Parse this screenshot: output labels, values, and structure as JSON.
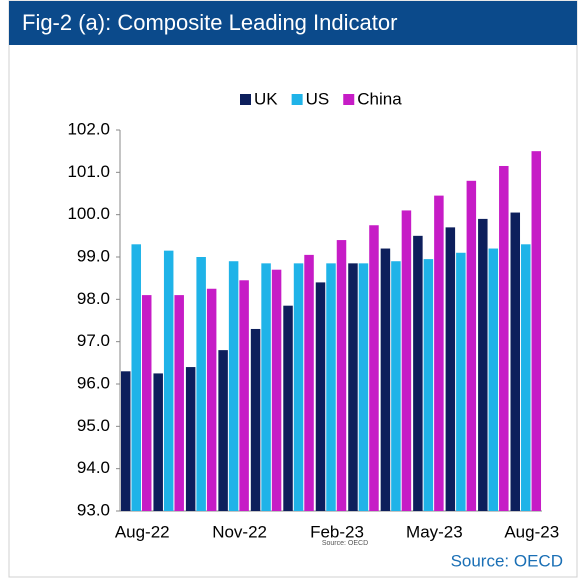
{
  "chart_data": {
    "type": "bar",
    "title": "Fig-2 (a): Composite Leading Indicator",
    "categories": [
      "Aug-22",
      null,
      null,
      "Nov-22",
      null,
      null,
      "Feb-23",
      null,
      null,
      "May-23",
      null,
      null,
      "Aug-23"
    ],
    "series": [
      {
        "name": "UK",
        "color": "#0d1f5c",
        "values": [
          96.3,
          96.25,
          96.4,
          96.8,
          97.3,
          97.85,
          98.4,
          98.85,
          99.2,
          99.5,
          99.7,
          99.9,
          100.05
        ]
      },
      {
        "name": "US",
        "color": "#1fb3e8",
        "values": [
          99.3,
          99.15,
          99.0,
          98.9,
          98.85,
          98.85,
          98.85,
          98.85,
          98.9,
          98.95,
          99.1,
          99.2,
          99.3
        ]
      },
      {
        "name": "China",
        "color": "#c61cc6",
        "values": [
          98.1,
          98.1,
          98.25,
          98.45,
          98.7,
          99.05,
          99.4,
          99.75,
          100.1,
          100.45,
          100.8,
          101.15,
          101.5
        ]
      }
    ],
    "ylim": [
      93,
      102
    ],
    "yticks": [
      {
        "value": 93,
        "label": "93.0"
      },
      {
        "value": 94,
        "label": "94.0"
      },
      {
        "value": 95,
        "label": "95.0"
      },
      {
        "value": 96,
        "label": "96.0"
      },
      {
        "value": 97,
        "label": "97.0"
      },
      {
        "value": 98,
        "label": "98.0"
      },
      {
        "value": 99,
        "label": "99.0"
      },
      {
        "value": 100,
        "label": "100.0"
      },
      {
        "value": 101,
        "label": "101.0"
      },
      {
        "value": 102,
        "label": "102.0"
      }
    ],
    "source_small": "Source: OECD",
    "source": "Source: OECD",
    "legend": "top"
  }
}
